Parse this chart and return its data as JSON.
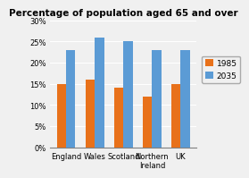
{
  "title": "Percentage of population aged 65 and over",
  "categories": [
    "England",
    "Wales",
    "Scotland",
    "Northern\nIreland",
    "UK"
  ],
  "values_1985": [
    15,
    16,
    14,
    12,
    15
  ],
  "values_2035": [
    23,
    26,
    25,
    23,
    23
  ],
  "color_1985": "#e8711a",
  "color_2035": "#5b9bd5",
  "legend_labels": [
    "1985",
    "2035"
  ],
  "ylim": [
    0,
    30
  ],
  "yticks": [
    0,
    5,
    10,
    15,
    20,
    25,
    30
  ],
  "ytick_labels": [
    "0%",
    "5%",
    "10%",
    "15%",
    "20%",
    "25%",
    "30%"
  ],
  "title_fontsize": 7.5,
  "tick_fontsize": 6.0,
  "legend_fontsize": 6.5,
  "bar_width": 0.32,
  "bg_color": "#f0f0f0"
}
